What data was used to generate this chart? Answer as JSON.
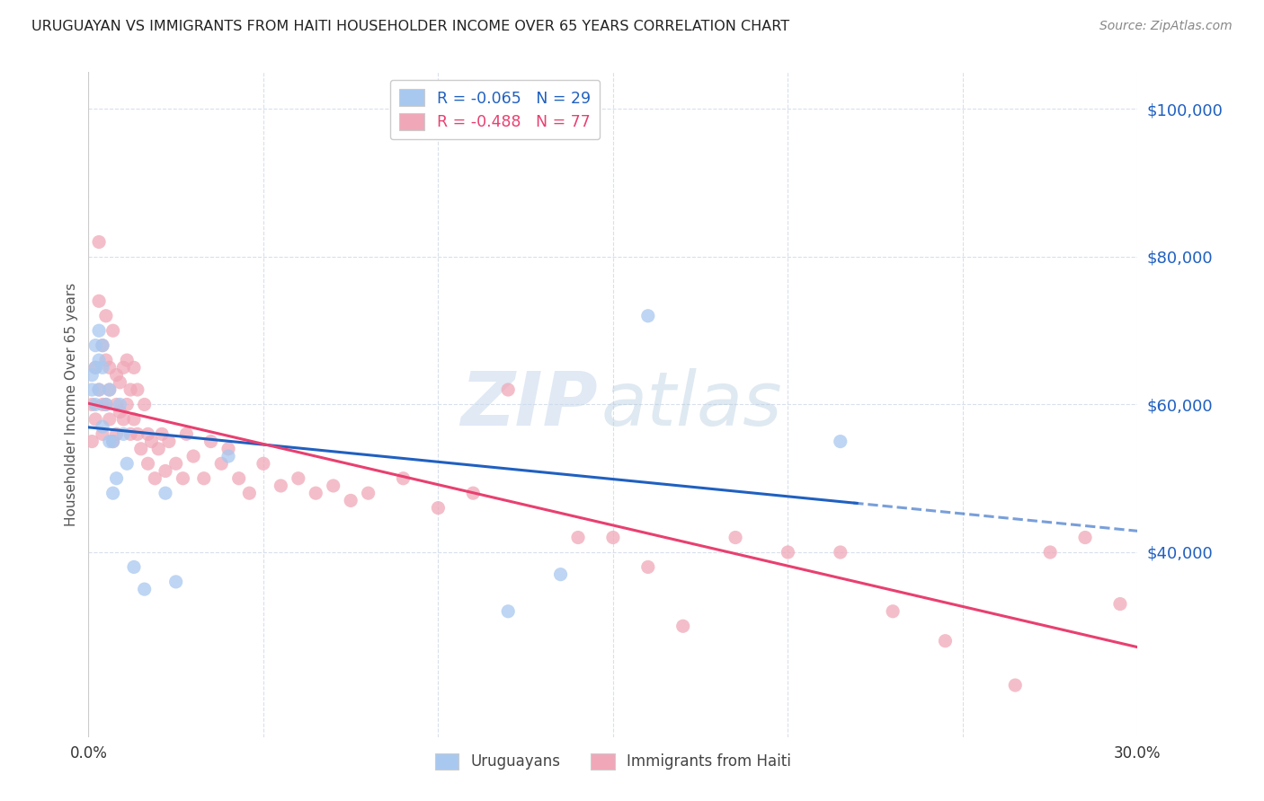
{
  "title": "URUGUAYAN VS IMMIGRANTS FROM HAITI HOUSEHOLDER INCOME OVER 65 YEARS CORRELATION CHART",
  "source": "Source: ZipAtlas.com",
  "ylabel": "Householder Income Over 65 years",
  "xlim": [
    0.0,
    0.3
  ],
  "ylim": [
    15000,
    105000
  ],
  "ytick_positions": [
    40000,
    60000,
    80000,
    100000
  ],
  "ytick_labels": [
    "$40,000",
    "$60,000",
    "$80,000",
    "$100,000"
  ],
  "xtick_positions": [
    0.0,
    0.05,
    0.1,
    0.15,
    0.2,
    0.25,
    0.3
  ],
  "xtick_labels": [
    "0.0%",
    "",
    "",
    "",
    "",
    "",
    "30.0%"
  ],
  "background_color": "#ffffff",
  "grid_color": "#d8e0ec",
  "uruguayan_color": "#a8c8f0",
  "haiti_color": "#f0a8b8",
  "uruguayan_line_color": "#2060c0",
  "haiti_line_color": "#e84070",
  "R_uruguayan": -0.065,
  "N_uruguayan": 29,
  "R_haiti": -0.488,
  "N_haiti": 77,
  "legend_labels": [
    "Uruguayans",
    "Immigrants from Haiti"
  ],
  "uruguayan_x": [
    0.001,
    0.001,
    0.002,
    0.002,
    0.002,
    0.003,
    0.003,
    0.003,
    0.004,
    0.004,
    0.004,
    0.005,
    0.006,
    0.006,
    0.007,
    0.007,
    0.008,
    0.009,
    0.01,
    0.011,
    0.013,
    0.016,
    0.022,
    0.025,
    0.04,
    0.12,
    0.135,
    0.16,
    0.215
  ],
  "uruguayan_y": [
    62000,
    64000,
    68000,
    65000,
    60000,
    70000,
    66000,
    62000,
    65000,
    68000,
    57000,
    60000,
    55000,
    62000,
    55000,
    48000,
    50000,
    60000,
    56000,
    52000,
    38000,
    35000,
    48000,
    36000,
    53000,
    32000,
    37000,
    72000,
    55000
  ],
  "haiti_x": [
    0.001,
    0.001,
    0.002,
    0.002,
    0.003,
    0.003,
    0.003,
    0.004,
    0.004,
    0.004,
    0.005,
    0.005,
    0.005,
    0.006,
    0.006,
    0.006,
    0.007,
    0.007,
    0.008,
    0.008,
    0.008,
    0.009,
    0.009,
    0.01,
    0.01,
    0.011,
    0.011,
    0.012,
    0.012,
    0.013,
    0.013,
    0.014,
    0.014,
    0.015,
    0.016,
    0.017,
    0.017,
    0.018,
    0.019,
    0.02,
    0.021,
    0.022,
    0.023,
    0.025,
    0.027,
    0.028,
    0.03,
    0.033,
    0.035,
    0.038,
    0.04,
    0.043,
    0.046,
    0.05,
    0.055,
    0.06,
    0.065,
    0.07,
    0.075,
    0.08,
    0.09,
    0.1,
    0.11,
    0.12,
    0.14,
    0.15,
    0.16,
    0.17,
    0.185,
    0.2,
    0.215,
    0.23,
    0.245,
    0.265,
    0.275,
    0.285,
    0.295
  ],
  "haiti_y": [
    60000,
    55000,
    58000,
    65000,
    82000,
    74000,
    62000,
    68000,
    60000,
    56000,
    72000,
    66000,
    60000,
    65000,
    62000,
    58000,
    70000,
    55000,
    64000,
    60000,
    56000,
    63000,
    59000,
    65000,
    58000,
    66000,
    60000,
    56000,
    62000,
    65000,
    58000,
    62000,
    56000,
    54000,
    60000,
    56000,
    52000,
    55000,
    50000,
    54000,
    56000,
    51000,
    55000,
    52000,
    50000,
    56000,
    53000,
    50000,
    55000,
    52000,
    54000,
    50000,
    48000,
    52000,
    49000,
    50000,
    48000,
    49000,
    47000,
    48000,
    50000,
    46000,
    48000,
    62000,
    42000,
    42000,
    38000,
    30000,
    42000,
    40000,
    40000,
    32000,
    28000,
    22000,
    40000,
    42000,
    33000
  ]
}
